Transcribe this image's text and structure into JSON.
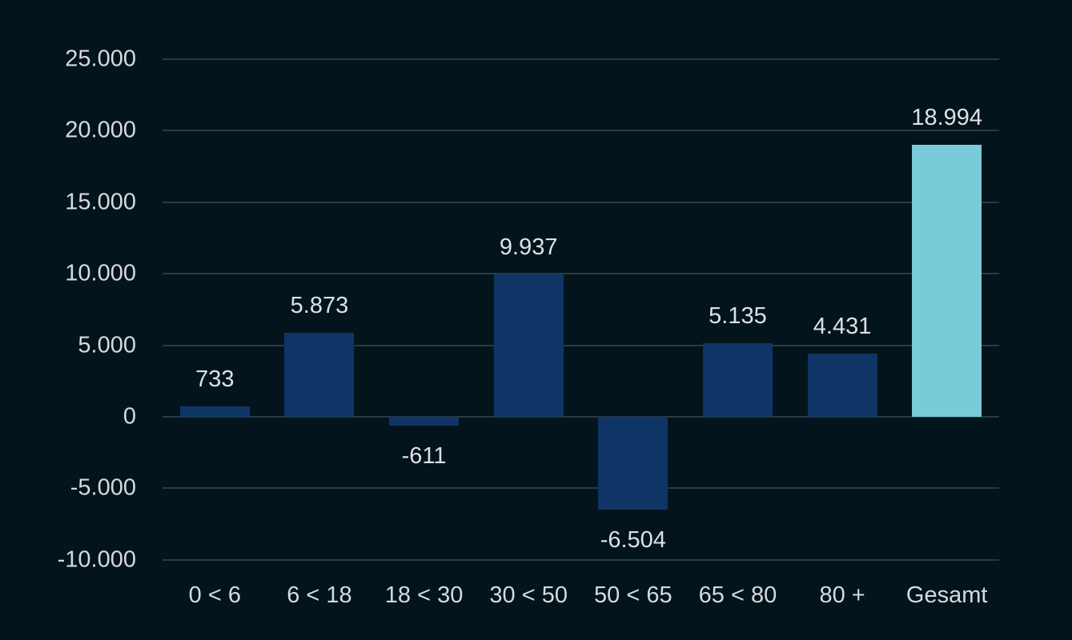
{
  "chart_data": {
    "type": "bar",
    "title": "",
    "xlabel": "",
    "ylabel": "",
    "categories": [
      "0 < 6",
      "6 < 18",
      "18 < 30",
      "30 < 50",
      "50 < 65",
      "65 < 80",
      "80 +",
      "Gesamt"
    ],
    "values": [
      733,
      5873,
      -611,
      9937,
      -6504,
      5135,
      4431,
      18994
    ],
    "value_labels": [
      "733",
      "5.873",
      "-611",
      "9.937",
      "-6.504",
      "5.135",
      "4.431",
      "18.994"
    ],
    "ylim": [
      -10000,
      25000
    ],
    "yticks": [
      25000,
      20000,
      15000,
      10000,
      5000,
      0,
      -5000,
      -10000
    ],
    "ytick_labels": [
      "25.000",
      "20.000",
      "15.000",
      "10.000",
      "5.000",
      "0",
      "-5.000",
      "-10.000"
    ],
    "grid": true,
    "legend": null,
    "colors": {
      "background": "#03141c",
      "bar": "#0e3566",
      "total_bar": "#7acbd9",
      "grid": "#2a3a42",
      "text": "#d9dde0"
    }
  }
}
